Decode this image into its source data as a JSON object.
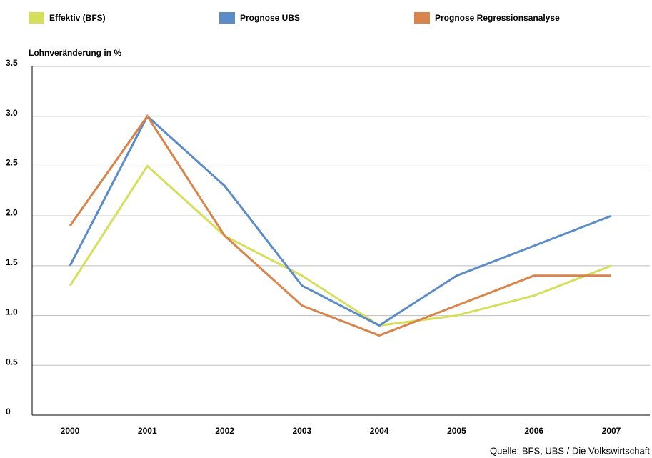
{
  "chart_data": {
    "type": "line",
    "y_axis_label": "Lohnveränderung in %",
    "source": "Quelle: BFS, UBS / Die Volkswirtschaft",
    "categories": [
      "2000",
      "2001",
      "2002",
      "2003",
      "2004",
      "2005",
      "2006",
      "2007"
    ],
    "series": [
      {
        "name": "Effektiv (BFS)",
        "color": "#d6df5c",
        "values": [
          1.3,
          2.5,
          1.8,
          1.4,
          0.9,
          1.0,
          1.2,
          1.5
        ]
      },
      {
        "name": "Prognose UBS",
        "color": "#5b8cc8",
        "values": [
          1.5,
          3.0,
          2.3,
          1.3,
          0.9,
          1.4,
          1.7,
          2.0
        ]
      },
      {
        "name": "Prognose Regressionsanalyse",
        "color": "#d8844a",
        "values": [
          1.9,
          3.0,
          1.8,
          1.1,
          0.8,
          1.1,
          1.4,
          1.4
        ]
      }
    ],
    "ylim": [
      0,
      3.5
    ],
    "yticks": [
      0,
      0.5,
      {
        "value": 1,
        "label": "1.0"
      },
      1.5,
      {
        "value": 2,
        "label": "2.0"
      },
      2.5,
      {
        "value": 3,
        "label": "3.0"
      },
      3.5
    ],
    "grid": true
  }
}
